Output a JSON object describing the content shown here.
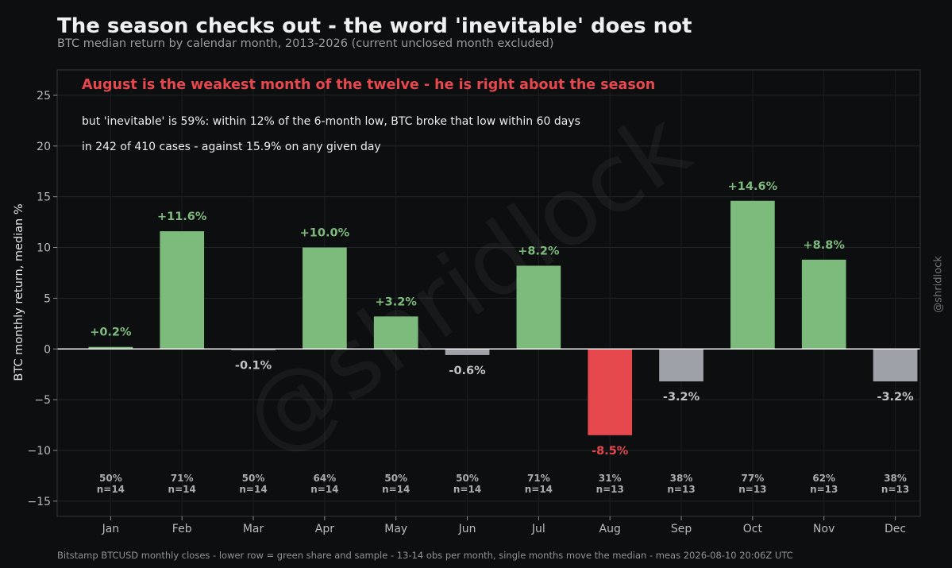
{
  "header": {
    "title": "The season checks out - the word 'inevitable' does not",
    "subtitle": "BTC median return by calendar month, 2013-2026 (current unclosed month excluded)"
  },
  "footer": {
    "note": "Bitstamp BTCUSD monthly closes - lower row = green share and sample - 13-14 obs per month, single months move the median - meas 2026-08-10 20:06Z UTC"
  },
  "side_credit": "@shridlock",
  "watermark": "@shridlock",
  "annotations": {
    "headline": "August is the weakest month of the twelve - he is right about the season",
    "line1": "but 'inevitable' is 59%: within 12% of the 6-month low, BTC broke that low within 60 days",
    "line2": "in 242 of 410 cases - against 15.9% on any given day"
  },
  "colors": {
    "positive": "#7dbb7c",
    "negative": "#9ea1a7",
    "highlight": "#e5484d",
    "positive_label": "#7dbb7c",
    "negative_label": "#c2c4c8",
    "highlight_label": "#e5484d"
  },
  "chart_data": {
    "type": "bar",
    "ylabel": "BTC monthly return, median %",
    "xlabel": "",
    "ylim": [
      -16.5,
      27.5
    ],
    "yticks": [
      -15,
      -10,
      -5,
      0,
      5,
      10,
      15,
      20,
      25
    ],
    "ytick_labels": [
      "−15",
      "−10",
      "−5",
      "0",
      "5",
      "10",
      "15",
      "20",
      "25"
    ],
    "grid": true,
    "categories": [
      "Jan",
      "Feb",
      "Mar",
      "Apr",
      "May",
      "Jun",
      "Jul",
      "Aug",
      "Sep",
      "Oct",
      "Nov",
      "Dec"
    ],
    "values": [
      0.2,
      11.6,
      -0.1,
      10.0,
      3.2,
      -0.6,
      8.2,
      -8.5,
      -3.2,
      14.6,
      8.8,
      -3.2
    ],
    "value_labels": [
      "+0.2%",
      "+11.6%",
      "-0.1%",
      "+10.0%",
      "+3.2%",
      "-0.6%",
      "+8.2%",
      "-8.5%",
      "-3.2%",
      "+14.6%",
      "+8.8%",
      "-3.2%"
    ],
    "highlight_category": "Aug",
    "green_share": [
      "50%",
      "71%",
      "50%",
      "64%",
      "50%",
      "50%",
      "71%",
      "31%",
      "38%",
      "77%",
      "62%",
      "38%"
    ],
    "sample_size": [
      "n=14",
      "n=14",
      "n=14",
      "n=14",
      "n=14",
      "n=14",
      "n=14",
      "n=13",
      "n=13",
      "n=13",
      "n=13",
      "n=13"
    ]
  }
}
